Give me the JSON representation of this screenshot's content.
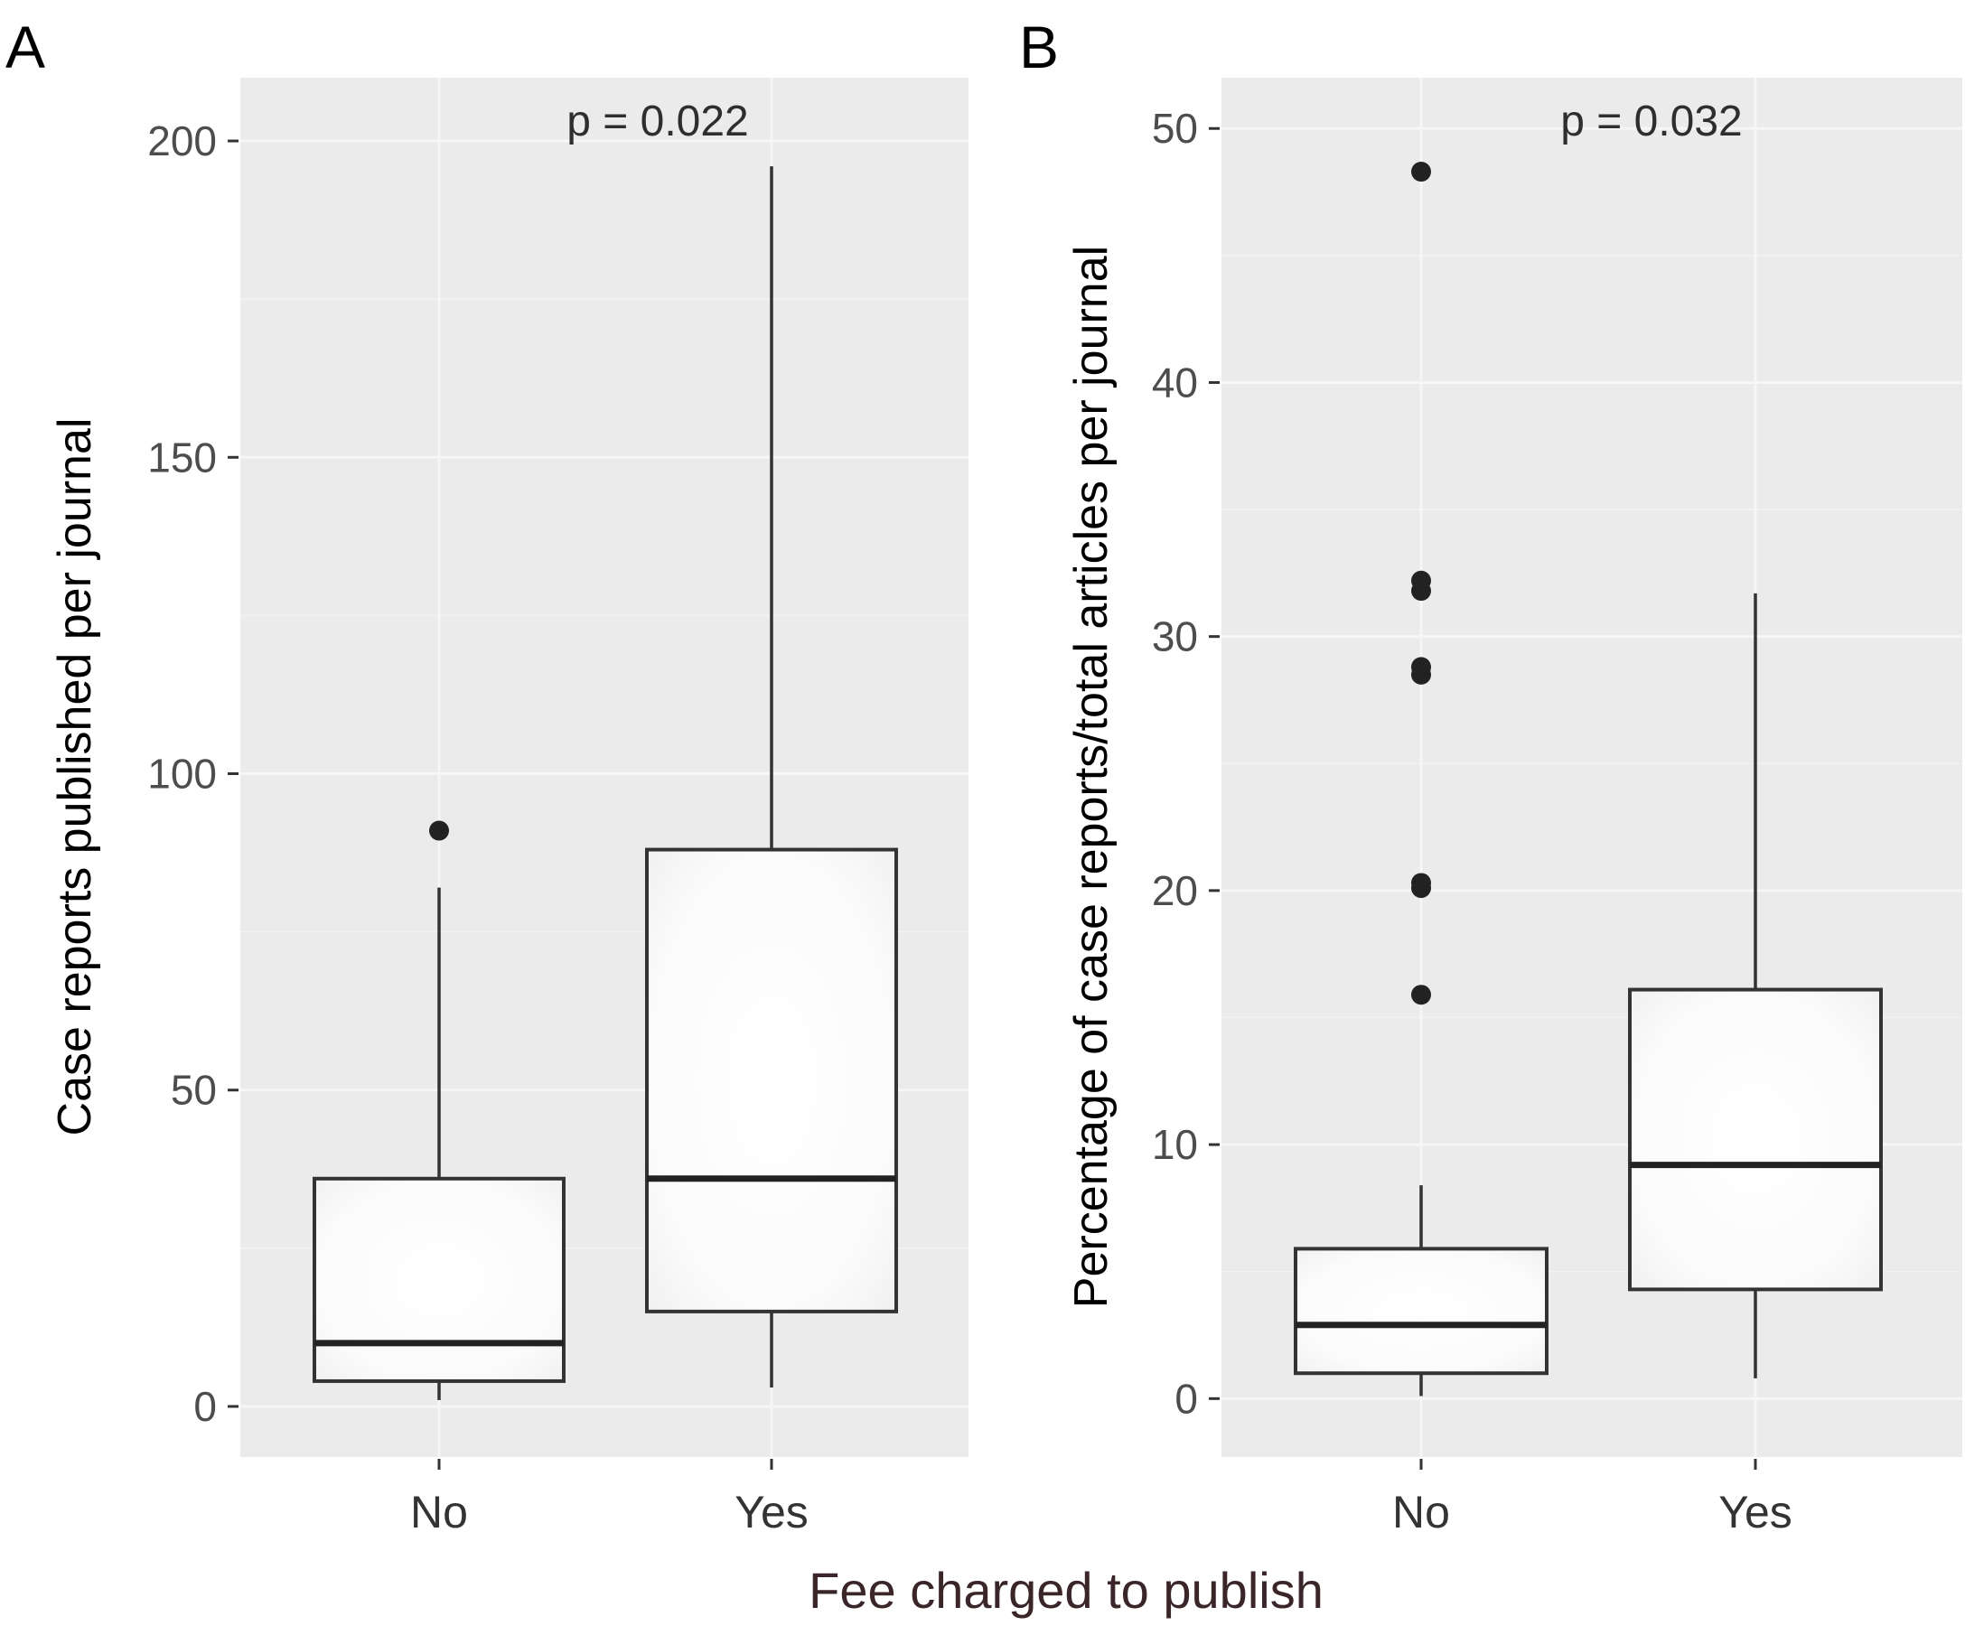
{
  "figure": {
    "xlabel": "Fee charged to publish"
  },
  "chart_data": [
    {
      "type": "box",
      "panel_label": "A",
      "title": "",
      "annotation": "p = 0.022",
      "xlabel": "",
      "ylabel": "Case reports published per journal",
      "categories": [
        "No",
        "Yes"
      ],
      "ylim": [
        -8,
        210
      ],
      "y_ticks": [
        0,
        50,
        100,
        150,
        200
      ],
      "y_tick_labels": [
        "0",
        "50",
        "100",
        "150",
        "200"
      ],
      "grid": true,
      "boxes": [
        {
          "category": "No",
          "whisker_low": 1,
          "q1": 4,
          "median": 10,
          "q3": 36,
          "whisker_high": 82,
          "outliers": [
            91
          ]
        },
        {
          "category": "Yes",
          "whisker_low": 3,
          "q1": 15,
          "median": 36,
          "q3": 88,
          "whisker_high": 196,
          "outliers": []
        }
      ]
    },
    {
      "type": "box",
      "panel_label": "B",
      "title": "",
      "annotation": "p = 0.032",
      "xlabel": "",
      "ylabel": "Percentage of case reports/total articles per journal",
      "categories": [
        "No",
        "Yes"
      ],
      "ylim": [
        -2.3,
        52
      ],
      "y_ticks": [
        0,
        10,
        20,
        30,
        40,
        50
      ],
      "y_tick_labels": [
        "0",
        "10",
        "20",
        "30",
        "40",
        "50"
      ],
      "grid": true,
      "boxes": [
        {
          "category": "No",
          "whisker_low": 0.1,
          "q1": 1.0,
          "median": 2.9,
          "q3": 5.9,
          "whisker_high": 8.4,
          "outliers": [
            15.9,
            20.1,
            20.3,
            28.5,
            28.8,
            31.8,
            32.2,
            48.3
          ]
        },
        {
          "category": "Yes",
          "whisker_low": 0.8,
          "q1": 4.3,
          "median": 9.2,
          "q3": 16.1,
          "whisker_high": 31.7,
          "outliers": []
        }
      ]
    }
  ]
}
